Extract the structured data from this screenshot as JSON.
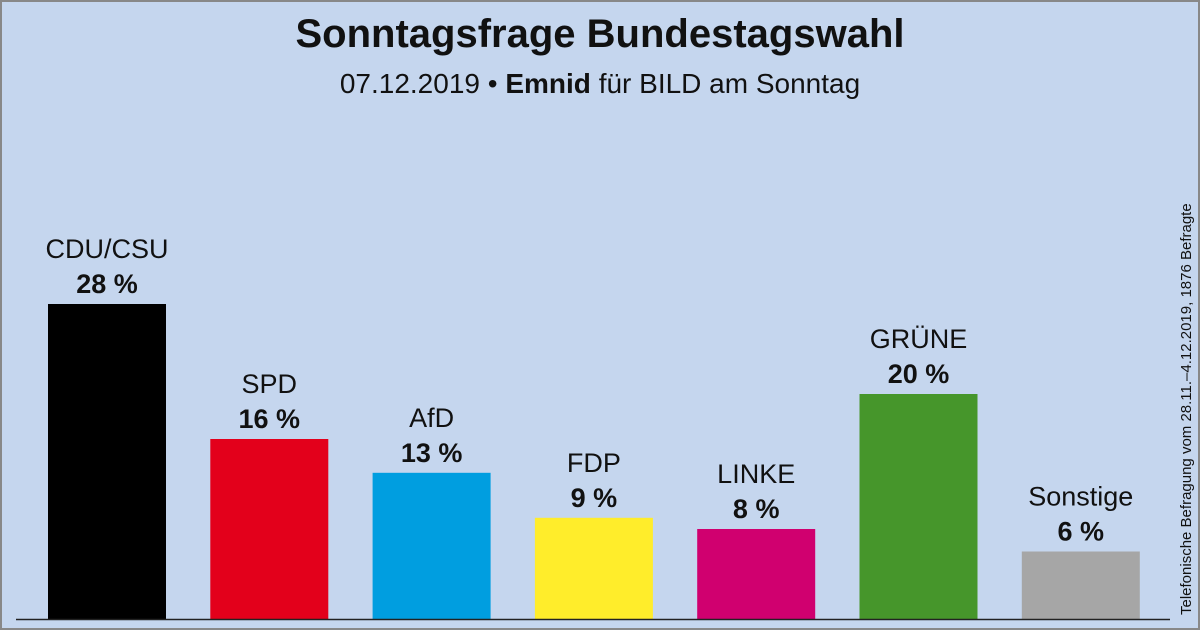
{
  "header": {
    "title": "Sonntagsfrage Bundestagswahl",
    "date": "07.12.2019",
    "separator": "•",
    "institute": "Emnid",
    "client": "für BILD am Sonntag"
  },
  "note": "Telefonische Befragung vom 28.11.–4.12.2019, 1876 Befragte",
  "chart_data": {
    "type": "bar",
    "title": "Sonntagsfrage Bundestagswahl",
    "xlabel": "",
    "ylabel": "",
    "unit": "%",
    "ylim": [
      0,
      28
    ],
    "categories": [
      "CDU/CSU",
      "SPD",
      "AfD",
      "FDP",
      "LINKE",
      "GRÜNE",
      "Sonstige"
    ],
    "values": [
      28,
      16,
      13,
      9,
      8,
      20,
      6
    ],
    "value_labels": [
      "28 %",
      "16 %",
      "13 %",
      "9 %",
      "8 %",
      "20 %",
      "6 %"
    ],
    "colors": [
      "#000000",
      "#e3001b",
      "#009ee0",
      "#ffed2b",
      "#d0006f",
      "#46962b",
      "#a6a6a6"
    ]
  }
}
